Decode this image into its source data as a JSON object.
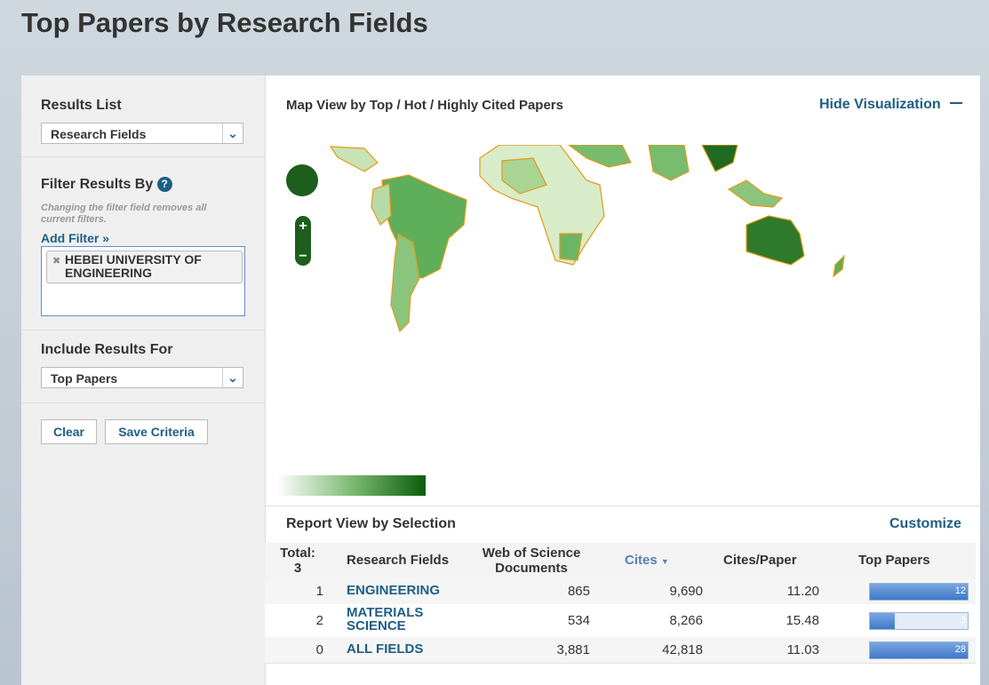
{
  "page_title": "Top Papers by Research Fields",
  "sidebar": {
    "results_list": {
      "label": "Results List",
      "selected": "Research Fields"
    },
    "filter": {
      "label": "Filter Results By",
      "help": "?",
      "note": "Changing the filter field removes all current filters.",
      "add_filter": "Add Filter »",
      "chips": [
        "HEBEI UNIVERSITY OF ENGINEERING"
      ]
    },
    "include": {
      "label": "Include Results For",
      "selected": "Top Papers"
    },
    "buttons": [
      "Clear",
      "Save Criteria"
    ]
  },
  "map": {
    "title": "Map View by Top / Hot / Highly Cited Papers",
    "hide": "Hide Visualization"
  },
  "report": {
    "title": "Report View by Selection",
    "customize": "Customize",
    "total_label": "Total:",
    "total": 3,
    "columns": [
      "Research Fields",
      "Web of Science Documents",
      "Cites",
      "Cites/Paper",
      "Top Papers"
    ],
    "rows": [
      {
        "rank": 1,
        "field": "ENGINEERING",
        "documents": "865",
        "cites": "9,690",
        "cites_per_paper": "11.20",
        "top_papers": 12
      },
      {
        "rank": 2,
        "field": "MATERIALS SCIENCE",
        "documents": "534",
        "cites": "8,266",
        "cites_per_paper": "15.48",
        "top_papers": 3
      },
      {
        "rank": 0,
        "field": "ALL FIELDS",
        "documents": "3,881",
        "cites": "42,818",
        "cites_per_paper": "11.03",
        "top_papers": 28
      }
    ]
  }
}
